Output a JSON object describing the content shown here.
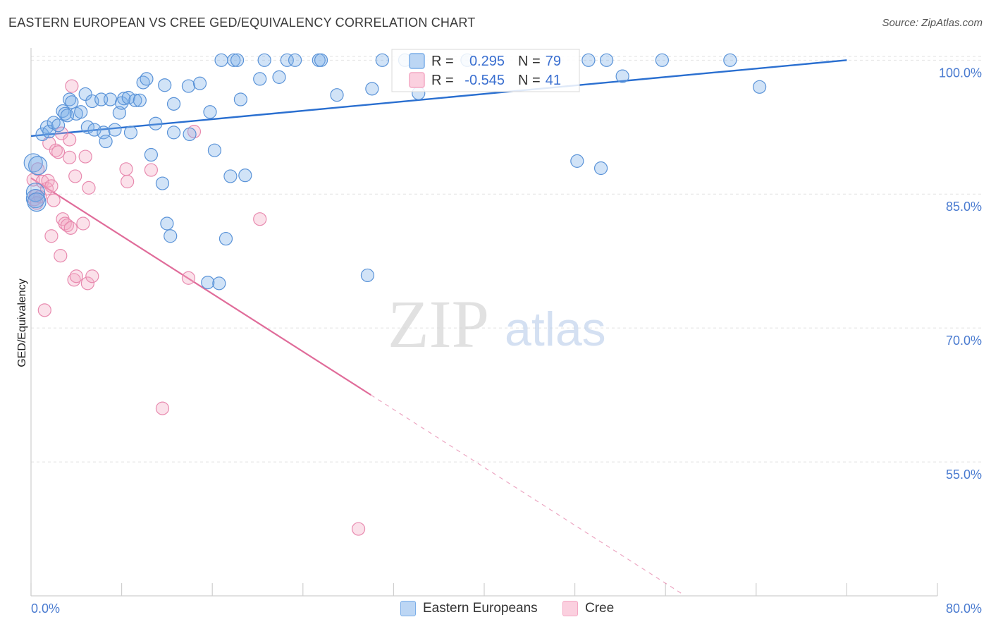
{
  "header": {
    "title": "EASTERN EUROPEAN VS CREE GED/EQUIVALENCY CORRELATION CHART",
    "source": "Source: ZipAtlas.com"
  },
  "watermark": {
    "zip": "ZIP",
    "atlas": "atlas"
  },
  "colors": {
    "blue": "#7baee8",
    "blue_stroke": "#5a93d8",
    "blue_line": "#2a6fd0",
    "pink": "#f4a8c4",
    "pink_stroke": "#e88aaf",
    "pink_line": "#e06c9a",
    "tick_text": "#4a7bd0"
  },
  "legend_box": {
    "rows": [
      {
        "series": "Eastern Europeans",
        "r_label": "R =",
        "r_value": "0.295",
        "n_label": "N =",
        "n_value": "79"
      },
      {
        "series": "Cree",
        "r_label": "R =",
        "r_value": "-0.545",
        "n_label": "N =",
        "n_value": "41"
      }
    ]
  },
  "chart_data": {
    "type": "scatter",
    "title": "EASTERN EUROPEAN VS CREE GED/EQUIVALENCY CORRELATION CHART",
    "xlabel": "",
    "ylabel": "GED/Equivalency",
    "xlim": [
      0,
      80
    ],
    "ylim": [
      40,
      102
    ],
    "x_tick_labels": [
      "0.0%",
      "80.0%"
    ],
    "y_ticks": [
      {
        "value": 55,
        "label": "55.0%"
      },
      {
        "value": 70,
        "label": "70.0%"
      },
      {
        "value": 85,
        "label": "85.0%"
      },
      {
        "value": 100,
        "label": "100.0%"
      }
    ],
    "grid": "horizontal dashed",
    "series": [
      {
        "name": "Eastern Europeans",
        "color": "#7baee8",
        "trend": {
          "x0": 0,
          "y0": 91.5,
          "x1": 72,
          "y1": 100
        },
        "points": [
          [
            0.2,
            88.5
          ],
          [
            0.4,
            85.2
          ],
          [
            0.4,
            84.5
          ],
          [
            0.6,
            88.2
          ],
          [
            1.0,
            91.7
          ],
          [
            1.4,
            92.5
          ],
          [
            1.6,
            92.0
          ],
          [
            2.0,
            93.0
          ],
          [
            2.4,
            92.7
          ],
          [
            2.8,
            94.3
          ],
          [
            3.0,
            94.0
          ],
          [
            3.4,
            95.6
          ],
          [
            3.6,
            95.3
          ],
          [
            4.0,
            94.0
          ],
          [
            4.4,
            94.2
          ],
          [
            4.8,
            96.2
          ],
          [
            5.0,
            92.5
          ],
          [
            5.4,
            95.4
          ],
          [
            5.6,
            92.2
          ],
          [
            6.2,
            95.6
          ],
          [
            6.4,
            91.9
          ],
          [
            6.6,
            90.9
          ],
          [
            7.0,
            95.6
          ],
          [
            7.4,
            92.2
          ],
          [
            7.8,
            94.1
          ],
          [
            8.0,
            95.2
          ],
          [
            8.2,
            95.7
          ],
          [
            8.6,
            95.8
          ],
          [
            8.8,
            91.9
          ],
          [
            9.2,
            95.5
          ],
          [
            9.6,
            95.5
          ],
          [
            9.9,
            97.5
          ],
          [
            10.2,
            97.9
          ],
          [
            10.6,
            89.4
          ],
          [
            11.0,
            92.9
          ],
          [
            11.6,
            86.2
          ],
          [
            11.8,
            97.2
          ],
          [
            12.0,
            81.7
          ],
          [
            12.3,
            80.3
          ],
          [
            12.6,
            95.1
          ],
          [
            12.6,
            91.9
          ],
          [
            13.9,
            97.1
          ],
          [
            14.0,
            91.7
          ],
          [
            14.9,
            97.4
          ],
          [
            15.6,
            75.1
          ],
          [
            15.8,
            94.2
          ],
          [
            16.2,
            89.9
          ],
          [
            16.6,
            75.0
          ],
          [
            16.8,
            100
          ],
          [
            17.2,
            80.0
          ],
          [
            17.6,
            87.0
          ],
          [
            17.9,
            100
          ],
          [
            18.2,
            100
          ],
          [
            18.9,
            87.1
          ],
          [
            18.5,
            95.6
          ],
          [
            20.2,
            97.9
          ],
          [
            20.6,
            100
          ],
          [
            21.9,
            98.1
          ],
          [
            22.6,
            100
          ],
          [
            23.3,
            100
          ],
          [
            25.4,
            100
          ],
          [
            25.6,
            100
          ],
          [
            27.0,
            96.1
          ],
          [
            29.7,
            75.9
          ],
          [
            30.1,
            96.8
          ],
          [
            31.0,
            100
          ],
          [
            33.0,
            100
          ],
          [
            34.2,
            96.3
          ],
          [
            38.5,
            100
          ],
          [
            48.2,
            88.7
          ],
          [
            49.2,
            100
          ],
          [
            50.3,
            87.9
          ],
          [
            50.8,
            100
          ],
          [
            52.2,
            98.2
          ],
          [
            55.7,
            100
          ],
          [
            61.7,
            100
          ],
          [
            64.3,
            97.0
          ],
          [
            0.5,
            84.1
          ],
          [
            3.2,
            93.8
          ]
        ],
        "sizes_note": "most points small, a few larger clustered near origin"
      },
      {
        "name": "Cree",
        "color": "#f4a8c4",
        "trend": {
          "x0": 0,
          "y0": 86.8,
          "x1": 30,
          "y1": 62.5,
          "dashed_to": {
            "x": 57.5,
            "y": 40.2
          }
        },
        "points": [
          [
            0.2,
            86.6
          ],
          [
            0.3,
            84.4
          ],
          [
            0.4,
            84.8
          ],
          [
            0.6,
            87.8
          ],
          [
            0.8,
            84.7
          ],
          [
            1.0,
            86.4
          ],
          [
            1.2,
            72.0
          ],
          [
            1.4,
            85.6
          ],
          [
            1.5,
            86.5
          ],
          [
            1.6,
            90.7
          ],
          [
            1.8,
            80.3
          ],
          [
            1.8,
            85.9
          ],
          [
            2.0,
            84.3
          ],
          [
            2.2,
            89.9
          ],
          [
            2.4,
            89.7
          ],
          [
            2.6,
            78.1
          ],
          [
            2.7,
            91.8
          ],
          [
            2.8,
            82.2
          ],
          [
            3.0,
            81.7
          ],
          [
            3.2,
            81.5
          ],
          [
            3.4,
            91.1
          ],
          [
            3.4,
            89.1
          ],
          [
            3.5,
            81.2
          ],
          [
            3.6,
            97.1
          ],
          [
            3.8,
            75.4
          ],
          [
            3.9,
            87.0
          ],
          [
            4.0,
            75.8
          ],
          [
            4.6,
            81.7
          ],
          [
            4.8,
            89.2
          ],
          [
            5.0,
            75.0
          ],
          [
            5.1,
            85.7
          ],
          [
            5.4,
            75.8
          ],
          [
            8.4,
            87.8
          ],
          [
            8.5,
            86.4
          ],
          [
            10.6,
            87.7
          ],
          [
            11.6,
            61.0
          ],
          [
            13.9,
            75.6
          ],
          [
            14.4,
            92.0
          ],
          [
            20.2,
            82.2
          ],
          [
            28.9,
            47.5
          ],
          [
            0.5,
            84.0
          ]
        ]
      }
    ]
  },
  "bottom_legend": {
    "items": [
      {
        "label": "Eastern Europeans"
      },
      {
        "label": "Cree"
      }
    ]
  }
}
